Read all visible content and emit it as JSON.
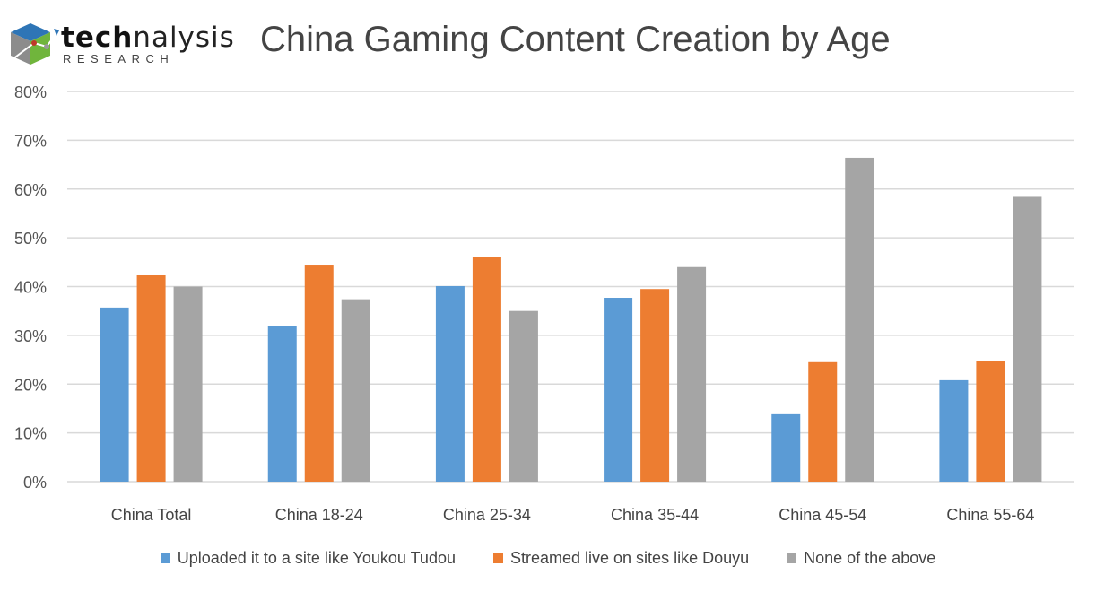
{
  "logo": {
    "text_bold": "tech",
    "text_regular": "nalysis",
    "subtext": "RESEARCH"
  },
  "chart_data": {
    "type": "bar",
    "title": "China Gaming Content Creation by Age",
    "categories": [
      "China Total",
      "China 18-24",
      "China 25-34",
      "China 35-44",
      "China 45-54",
      "China 55-64"
    ],
    "series": [
      {
        "name": "Uploaded it to a site like Youkou Tudou",
        "color": "#5B9BD5",
        "values": [
          35.7,
          32.0,
          40.1,
          37.7,
          14.0,
          20.8
        ]
      },
      {
        "name": "Streamed live on sites like Douyu",
        "color": "#ED7D31",
        "values": [
          42.3,
          44.5,
          46.1,
          39.5,
          24.5,
          24.8
        ]
      },
      {
        "name": "None of the above",
        "color": "#A5A5A5",
        "values": [
          40.0,
          37.4,
          35.0,
          44.0,
          66.4,
          58.4
        ]
      }
    ],
    "yticks": [
      "0%",
      "10%",
      "20%",
      "30%",
      "40%",
      "50%",
      "60%",
      "70%",
      "80%"
    ],
    "ylim": [
      0,
      80
    ],
    "grid": true,
    "legend": "bottom"
  }
}
